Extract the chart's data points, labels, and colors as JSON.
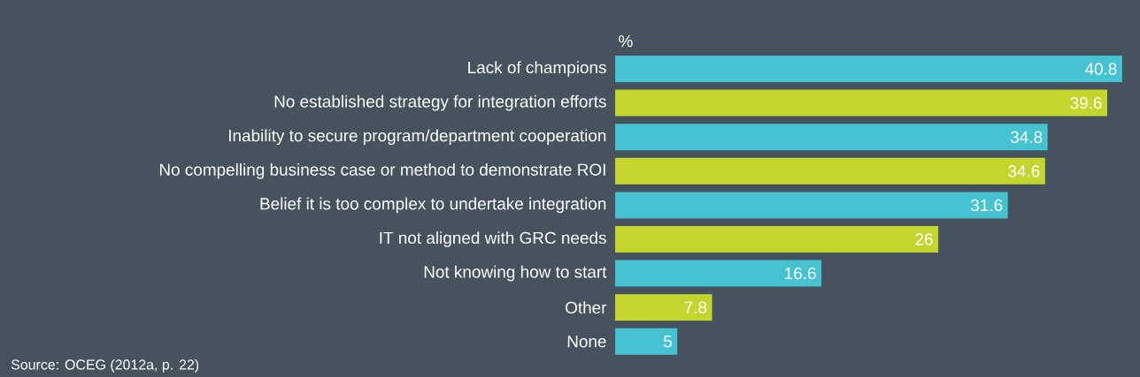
{
  "chart_data": {
    "type": "bar",
    "orientation": "horizontal",
    "xlabel": "%",
    "categories": [
      "Lack of champions",
      "No established strategy for integration efforts",
      "Inability to secure program/department cooperation",
      "No compelling business case or method to demonstrate ROI",
      "Belief it is too complex to undertake integration",
      "IT not aligned with GRC needs",
      "Not knowing how to start",
      "Other",
      "None"
    ],
    "values": [
      40.8,
      39.6,
      34.8,
      34.6,
      31.6,
      26,
      16.6,
      7.8,
      5
    ],
    "colors": [
      "#45c3d3",
      "#c2d62e",
      "#45c3d3",
      "#c2d62e",
      "#45c3d3",
      "#c2d62e",
      "#45c3d3",
      "#c2d62e",
      "#45c3d3"
    ],
    "tick_labels": "y",
    "data_labels": true,
    "annotations": [
      "Source: OCEG (2012a, p. 22)"
    ]
  }
}
